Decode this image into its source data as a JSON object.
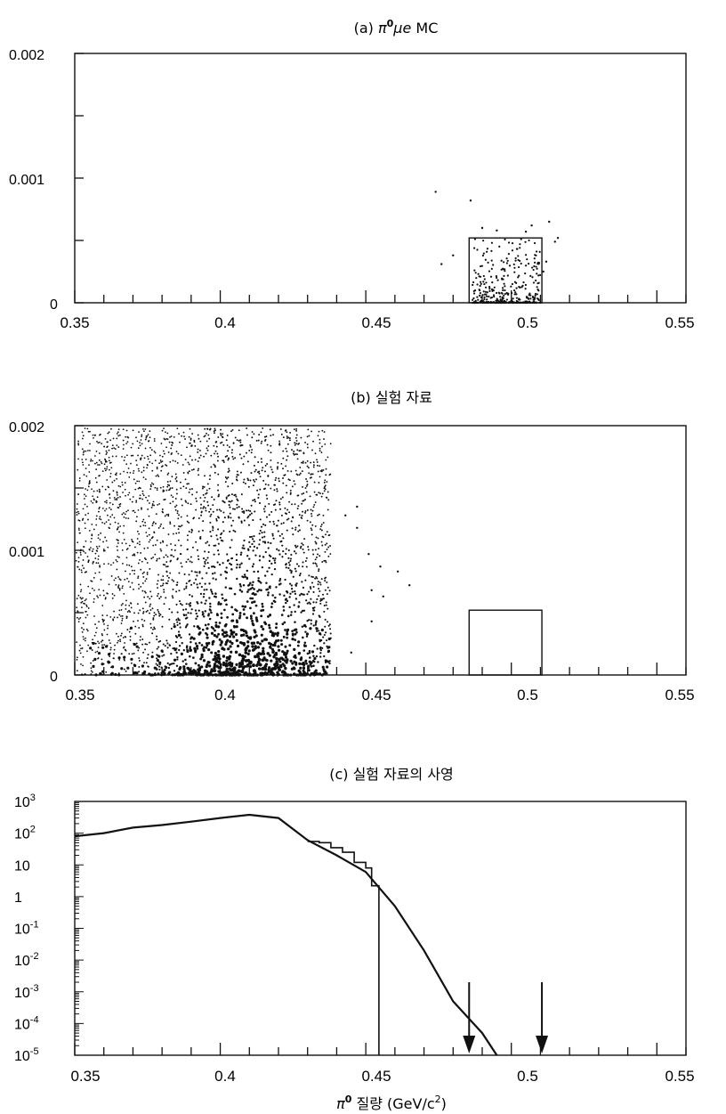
{
  "chart_data": [
    {
      "type": "scatter",
      "title": "(a) π⁰μe MC",
      "title_parts": {
        "prefix": "(a) ",
        "pi": "π",
        "sup": "0",
        "mu": "μ",
        "e": "e",
        "suffix": " MC"
      },
      "xlim": [
        0.35,
        0.56
      ],
      "ylim": [
        0,
        0.002
      ],
      "xticks": [
        "0.35",
        "0.4",
        "0.45",
        "0.5",
        "0.55"
      ],
      "yticks": [
        "0",
        "0.001",
        "0.002"
      ],
      "grid": false,
      "signal_box": {
        "x": [
          0.4855,
          0.5105
        ],
        "y": [
          0,
          0.00052
        ]
      },
      "points_note": "events concentrated inside the signal box near 0.49–0.51, densest at low y",
      "sample_points": [
        [
          0.474,
          0.00089
        ],
        [
          0.476,
          0.00031
        ],
        [
          0.486,
          0.00082
        ],
        [
          0.49,
          0.0006
        ],
        [
          0.495,
          0.00058
        ],
        [
          0.505,
          0.00057
        ],
        [
          0.507,
          0.00062
        ],
        [
          0.513,
          0.00065
        ],
        [
          0.515,
          0.00049
        ],
        [
          0.516,
          0.00052
        ],
        [
          0.48,
          0.00038
        ],
        [
          0.512,
          0.00033
        ],
        [
          0.511,
          0.00025
        ]
      ]
    },
    {
      "type": "scatter",
      "title": "(b) 실험 자료",
      "xlim": [
        0.35,
        0.56
      ],
      "ylim": [
        0,
        0.002
      ],
      "xticks": [
        "0.35",
        "0.4",
        "0.45",
        "0.5",
        "0.55"
      ],
      "yticks": [
        "0",
        "0.001",
        "0.002"
      ],
      "grid": false,
      "signal_box": {
        "x": [
          0.4855,
          0.5105
        ],
        "y": [
          0,
          0.00052
        ]
      },
      "points_note": "dense uniform band for x in 0.35–0.438, densest near y=0 around x≈0.41; sparse tail to x≈0.465",
      "sample_points": [
        [
          0.443,
          0.00128
        ],
        [
          0.447,
          0.00135
        ],
        [
          0.447,
          0.00118
        ],
        [
          0.451,
          0.00097
        ],
        [
          0.455,
          0.00087
        ],
        [
          0.461,
          0.00083
        ],
        [
          0.465,
          0.00072
        ],
        [
          0.452,
          0.00068
        ],
        [
          0.456,
          0.00063
        ],
        [
          0.452,
          0.00043
        ],
        [
          0.445,
          0.00018
        ]
      ]
    },
    {
      "type": "line",
      "title": "(c) 실험 자료의 사영",
      "xlabel": "π⁰ 질량 (GeV/c²)",
      "xlabel_parts": {
        "pi": "π",
        "sup": "0",
        "text": " 질량 (GeV/c",
        "sup2": "2",
        "close": ")"
      },
      "xlim": [
        0.35,
        0.56
      ],
      "yscale": "log",
      "ylim": [
        1e-05,
        1000
      ],
      "xticks": [
        "0.35",
        "0.4",
        "0.45",
        "0.5",
        "0.55"
      ],
      "yticks": [
        {
          "base": "10",
          "exp": "3"
        },
        {
          "base": "10",
          "exp": "2"
        },
        {
          "base": "10",
          "exp": ""
        },
        {
          "base": "1",
          "exp": ""
        },
        {
          "base": "10",
          "exp": "-1"
        },
        {
          "base": "10",
          "exp": "-2"
        },
        {
          "base": "10",
          "exp": "-3"
        },
        {
          "base": "10",
          "exp": "-4"
        },
        {
          "base": "10",
          "exp": "-5"
        }
      ],
      "series": [
        {
          "kind": "histogram",
          "x": [
            0.43,
            0.434,
            0.438,
            0.442,
            0.446,
            0.45,
            0.452,
            0.454,
            0.4545
          ],
          "values": [
            55,
            50,
            35,
            25,
            12,
            8,
            2.2,
            2.2,
            1e-05
          ]
        },
        {
          "kind": "fit",
          "x": [
            0.35,
            0.36,
            0.37,
            0.38,
            0.39,
            0.4,
            0.41,
            0.42,
            0.43,
            0.44,
            0.45,
            0.46,
            0.47,
            0.48,
            0.49,
            0.495
          ],
          "values": [
            80,
            100,
            150,
            180,
            230,
            300,
            380,
            300,
            60,
            20,
            6,
            0.5,
            0.02,
            0.0005,
            5e-05,
            1e-05
          ]
        }
      ],
      "arrows": [
        0.4855,
        0.5105
      ]
    }
  ]
}
